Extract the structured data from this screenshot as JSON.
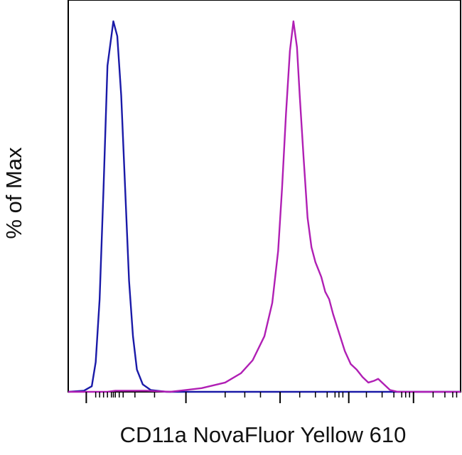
{
  "chart_data": {
    "type": "line",
    "title": "",
    "xlabel": "CD11a NovaFluor Yellow 610",
    "ylabel": "% of Max",
    "x_scale": "log",
    "x_tick_labels": [],
    "y_tick_labels": [],
    "ylim": [
      0,
      100
    ],
    "grid": false,
    "legend": "none",
    "series": [
      {
        "color": "#1a1aa8",
        "values": [
          {
            "x": 0.0,
            "y": 0
          },
          {
            "x": 0.04,
            "y": 0.3
          },
          {
            "x": 0.06,
            "y": 1.5
          },
          {
            "x": 0.07,
            "y": 8
          },
          {
            "x": 0.08,
            "y": 25
          },
          {
            "x": 0.09,
            "y": 55
          },
          {
            "x": 0.1,
            "y": 88
          },
          {
            "x": 0.115,
            "y": 100
          },
          {
            "x": 0.125,
            "y": 96
          },
          {
            "x": 0.135,
            "y": 80
          },
          {
            "x": 0.145,
            "y": 55
          },
          {
            "x": 0.155,
            "y": 30
          },
          {
            "x": 0.165,
            "y": 15
          },
          {
            "x": 0.175,
            "y": 6
          },
          {
            "x": 0.19,
            "y": 2
          },
          {
            "x": 0.21,
            "y": 0.5
          },
          {
            "x": 0.25,
            "y": 0
          },
          {
            "x": 0.5,
            "y": 0
          },
          {
            "x": 1.0,
            "y": 0
          }
        ]
      },
      {
        "color": "#b01fb4",
        "values": [
          {
            "x": 0.0,
            "y": 0
          },
          {
            "x": 0.1,
            "y": 0
          },
          {
            "x": 0.12,
            "y": 0.3
          },
          {
            "x": 0.2,
            "y": 0.3
          },
          {
            "x": 0.26,
            "y": 0
          },
          {
            "x": 0.34,
            "y": 1
          },
          {
            "x": 0.4,
            "y": 2.5
          },
          {
            "x": 0.44,
            "y": 5
          },
          {
            "x": 0.47,
            "y": 8.5
          },
          {
            "x": 0.5,
            "y": 15
          },
          {
            "x": 0.52,
            "y": 24
          },
          {
            "x": 0.535,
            "y": 38
          },
          {
            "x": 0.545,
            "y": 55
          },
          {
            "x": 0.555,
            "y": 75
          },
          {
            "x": 0.565,
            "y": 92
          },
          {
            "x": 0.574,
            "y": 100
          },
          {
            "x": 0.583,
            "y": 93
          },
          {
            "x": 0.59,
            "y": 80
          },
          {
            "x": 0.6,
            "y": 63
          },
          {
            "x": 0.61,
            "y": 47
          },
          {
            "x": 0.62,
            "y": 39
          },
          {
            "x": 0.63,
            "y": 35
          },
          {
            "x": 0.645,
            "y": 31
          },
          {
            "x": 0.655,
            "y": 27
          },
          {
            "x": 0.665,
            "y": 25
          },
          {
            "x": 0.675,
            "y": 21
          },
          {
            "x": 0.69,
            "y": 16
          },
          {
            "x": 0.705,
            "y": 11
          },
          {
            "x": 0.72,
            "y": 7.5
          },
          {
            "x": 0.735,
            "y": 6
          },
          {
            "x": 0.75,
            "y": 4
          },
          {
            "x": 0.765,
            "y": 2.5
          },
          {
            "x": 0.78,
            "y": 3
          },
          {
            "x": 0.79,
            "y": 3.5
          },
          {
            "x": 0.8,
            "y": 2.5
          },
          {
            "x": 0.82,
            "y": 0.5
          },
          {
            "x": 0.84,
            "y": 0
          },
          {
            "x": 1.0,
            "y": 0
          }
        ]
      }
    ],
    "x_major_ticks": [
      0.046,
      0.3,
      0.54,
      0.715,
      0.88
    ],
    "x_minor_ticks": [
      0.07,
      0.08,
      0.09,
      0.1,
      0.11,
      0.115,
      0.12,
      0.13,
      0.14,
      0.17,
      0.22,
      0.4,
      0.45,
      0.49,
      0.59,
      0.63,
      0.66,
      0.68,
      0.69,
      0.7,
      0.76,
      0.8,
      0.83,
      0.85,
      0.86,
      0.87,
      0.93,
      0.96,
      0.98,
      0.99
    ]
  }
}
